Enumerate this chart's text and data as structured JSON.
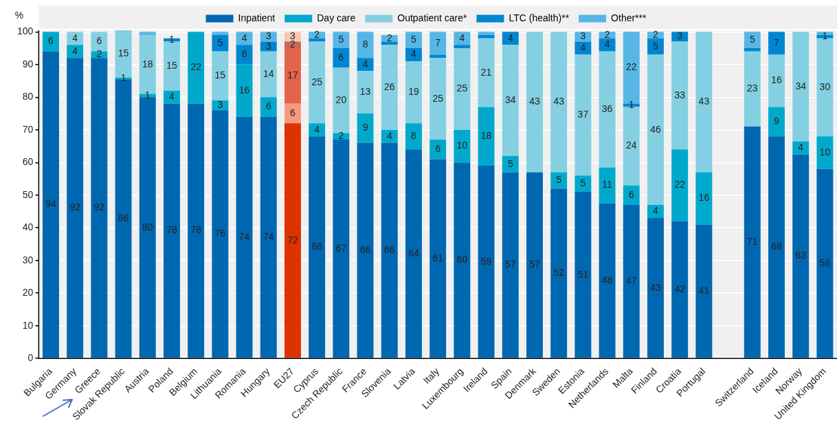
{
  "chart_data": {
    "type": "bar",
    "stacked": true,
    "ylabel": "%",
    "legend": "top",
    "grid": "y",
    "categories": [
      "Bulgaria",
      "Germany",
      "Greece",
      "Slovak Republic",
      "Austria",
      "Poland",
      "Belgium",
      "Lithuania",
      "Romania",
      "Hungary",
      "EU27",
      "Cyprus",
      "Czech Republic",
      "France",
      "Slovenia",
      "Latvia",
      "Italy",
      "Luxembourg",
      "Ireland",
      "Spain",
      "Denmark",
      "Sweden",
      "Estonia",
      "Netherlands",
      "Malta",
      "Finland",
      "Croatia",
      "Portugal",
      null,
      "Switzerland",
      "Iceland",
      "Norway",
      "United Kingdom"
    ],
    "ylim": [
      0,
      100.5
    ],
    "yticks": [
      0,
      10,
      20,
      30,
      40,
      50,
      60,
      70,
      80,
      90,
      100
    ],
    "series": [
      {
        "name": "Inpatient",
        "color": "#0067b1",
        "colors": [
          "#0067b1",
          "#0067b1",
          "#0067b1",
          "#0067b1",
          "#0067b1",
          "#0067b1",
          "#0067b1",
          "#0067b1",
          "#0067b1",
          "#0067b1",
          "#dd3300",
          "#0067b1",
          "#0067b1",
          "#0067b1",
          "#0067b1",
          "#0067b1",
          "#0067b1",
          "#0067b1",
          "#0067b1",
          "#0067b1",
          "#0067b1",
          "#0067b1",
          "#0067b1",
          "#0067b1",
          "#0067b1",
          "#0067b1",
          "#0067b1",
          "#0067b1",
          "#0067b1",
          "#0067b1",
          "#0067b1",
          "#0067b1",
          "#0067b1"
        ],
        "values": [
          94,
          92,
          92,
          85.5,
          80,
          78,
          78,
          76,
          74,
          74,
          72,
          68,
          67,
          66,
          66,
          64,
          61,
          60,
          59,
          57,
          57,
          52,
          51,
          47.5,
          47,
          43,
          42,
          41,
          null,
          71,
          68,
          62.5,
          58
        ],
        "value_labels": [
          "94",
          "92",
          "92",
          "86",
          "80",
          "78",
          "78",
          "76",
          "74",
          "74",
          "72",
          "68",
          "67",
          "66",
          "66",
          "64",
          "61",
          "60",
          "59",
          "57",
          "57",
          "52",
          "51",
          "48",
          "47",
          "43",
          "42",
          "41",
          null,
          "71",
          "68",
          "63",
          "58"
        ]
      },
      {
        "name": "Day care",
        "color": "#00a9cc",
        "colors": [
          "#00a9cc",
          "#00a9cc",
          "#00a9cc",
          "#00a9cc",
          "#00a9cc",
          "#00a9cc",
          "#00a9cc",
          "#00a9cc",
          "#00a9cc",
          "#00a9cc",
          "#f59a80",
          "#00a9cc",
          "#00a9cc",
          "#00a9cc",
          "#00a9cc",
          "#00a9cc",
          "#00a9cc",
          "#00a9cc",
          "#00a9cc",
          "#00a9cc",
          "#00a9cc",
          "#00a9cc",
          "#00a9cc",
          "#00a9cc",
          "#00a9cc",
          "#00a9cc",
          "#00a9cc",
          "#00a9cc",
          "#00a9cc",
          "#00a9cc",
          "#00a9cc",
          "#00a9cc",
          "#00a9cc"
        ],
        "values": [
          6,
          4,
          2,
          0.5,
          1,
          4,
          22,
          3,
          16,
          6,
          6,
          4,
          2,
          9,
          4,
          8,
          6,
          10,
          18,
          5,
          null,
          5,
          5,
          11,
          6,
          4,
          22,
          16,
          null,
          null,
          9,
          4,
          10
        ],
        "value_labels": [
          "6",
          "4",
          "2",
          "1",
          "1",
          "4",
          "22",
          "3",
          "16",
          "6",
          "6",
          "4",
          "2",
          "9",
          "4",
          "8",
          "6",
          "10",
          "18",
          "5",
          null,
          "5",
          "5",
          "11",
          "6",
          "4",
          "22",
          "16",
          null,
          null,
          "9",
          "4",
          "10"
        ]
      },
      {
        "name": "Outpatient care*",
        "color": "#84d0e2",
        "colors": [
          "#84d0e2",
          "#84d0e2",
          "#84d0e2",
          "#84d0e2",
          "#84d0e2",
          "#84d0e2",
          "#84d0e2",
          "#84d0e2",
          "#84d0e2",
          "#84d0e2",
          "#e4634b",
          "#84d0e2",
          "#84d0e2",
          "#84d0e2",
          "#84d0e2",
          "#84d0e2",
          "#84d0e2",
          "#84d0e2",
          "#84d0e2",
          "#84d0e2",
          "#84d0e2",
          "#84d0e2",
          "#84d0e2",
          "#84d0e2",
          "#84d0e2",
          "#84d0e2",
          "#84d0e2",
          "#84d0e2",
          "#84d0e2",
          "#84d0e2",
          "#84d0e2",
          "#84d0e2",
          "#84d0e2"
        ],
        "values": [
          null,
          4,
          6,
          14.5,
          18,
          15,
          null,
          15,
          null,
          14,
          17,
          25,
          20,
          13,
          26,
          19,
          25,
          25,
          21,
          34,
          43,
          43,
          37,
          35.5,
          24,
          46,
          33,
          43,
          null,
          23,
          16,
          33.5,
          30
        ],
        "value_labels": [
          null,
          "4",
          "6",
          "15",
          "18",
          "15",
          null,
          "15",
          null,
          "14",
          "17",
          "25",
          "20",
          "13",
          "26",
          "19",
          "25",
          "25",
          "21",
          "34",
          "43",
          "43",
          "37",
          "36",
          "24",
          "46",
          "33",
          "43",
          null,
          "23",
          "16",
          "34",
          "30"
        ]
      },
      {
        "name": "LTC (health)**",
        "color": "#0086d0",
        "colors": [
          "#0086d0",
          "#0086d0",
          "#0086d0",
          "#0086d0",
          "#0086d0",
          "#0086d0",
          "#0086d0",
          "#0086d0",
          "#0086d0",
          "#0086d0",
          "#c86a5a",
          "#0086d0",
          "#0086d0",
          "#0086d0",
          "#0086d0",
          "#0086d0",
          "#0086d0",
          "#0086d0",
          "#0086d0",
          "#0086d0",
          "#0086d0",
          "#0086d0",
          "#0086d0",
          "#0086d0",
          "#0086d0",
          "#0086d0",
          "#0086d0",
          "#0086d0",
          "#0086d0",
          "#0086d0",
          "#0086d0",
          "#0086d0",
          "#0086d0"
        ],
        "values": [
          null,
          null,
          null,
          null,
          null,
          1,
          null,
          5,
          6,
          3,
          2,
          1,
          6,
          4,
          1,
          4,
          1,
          1,
          1,
          4,
          null,
          null,
          4,
          4,
          1,
          5,
          3,
          null,
          null,
          1,
          7,
          null,
          1
        ],
        "value_labels": [
          null,
          null,
          null,
          null,
          null,
          "1",
          null,
          "5",
          "6",
          "3",
          "2",
          null,
          "6",
          "4",
          null,
          "4",
          null,
          null,
          null,
          "4",
          null,
          null,
          "4",
          "4",
          "1",
          "5",
          "3",
          null,
          null,
          null,
          "7",
          null,
          "1"
        ]
      },
      {
        "name": "Other***",
        "color": "#56b7e6",
        "colors": [
          "#56b7e6",
          "#56b7e6",
          "#56b7e6",
          "#56b7e6",
          "#56b7e6",
          "#56b7e6",
          "#56b7e6",
          "#56b7e6",
          "#56b7e6",
          "#56b7e6",
          "#f8c6b6",
          "#56b7e6",
          "#56b7e6",
          "#56b7e6",
          "#56b7e6",
          "#56b7e6",
          "#56b7e6",
          "#56b7e6",
          "#56b7e6",
          "#56b7e6",
          "#56b7e6",
          "#56b7e6",
          "#56b7e6",
          "#56b7e6",
          "#56b7e6",
          "#56b7e6",
          "#56b7e6",
          "#56b7e6",
          "#56b7e6",
          "#56b7e6",
          "#56b7e6",
          "#56b7e6",
          "#56b7e6"
        ],
        "values": [
          null,
          null,
          null,
          null,
          1,
          null,
          null,
          1,
          4,
          3,
          3,
          2,
          5,
          8,
          2,
          5,
          7,
          4,
          1,
          null,
          null,
          null,
          3,
          2,
          22,
          2,
          null,
          null,
          null,
          5,
          null,
          null,
          1
        ],
        "value_labels": [
          null,
          null,
          null,
          null,
          null,
          null,
          null,
          null,
          "4",
          "3",
          "3",
          "2",
          "5",
          "8",
          "2",
          "5",
          "7",
          "4",
          null,
          null,
          null,
          null,
          "3",
          "2",
          "22",
          "2",
          null,
          null,
          null,
          "5",
          null,
          null,
          null
        ]
      }
    ]
  }
}
